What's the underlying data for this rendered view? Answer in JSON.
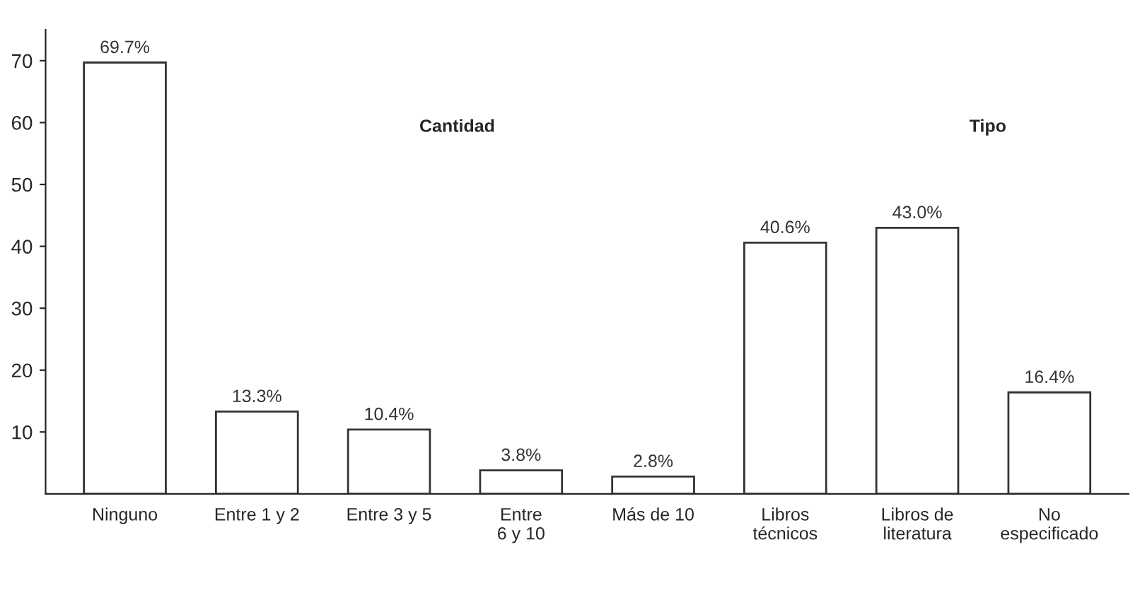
{
  "chart_data": {
    "type": "bar",
    "categories": [
      "Ninguno",
      "Entre 1 y 2",
      "Entre 3 y 5",
      "Entre\n6 y 10",
      "Más de 10",
      "Libros\ntécnicos",
      "Libros de\nliteratura",
      "No\nespecificado"
    ],
    "values": [
      69.7,
      13.3,
      10.4,
      3.8,
      2.8,
      40.6,
      43.0,
      16.4
    ],
    "value_labels": [
      "69.7%",
      "13.3%",
      "10.4%",
      "3.8%",
      "2.8%",
      "40.6%",
      "43.0%",
      "16.4%"
    ],
    "color": "#ffffff",
    "ylim": [
      0,
      75
    ],
    "yticks": [
      10,
      20,
      30,
      40,
      50,
      60,
      70
    ],
    "annotations": [
      "Cantidad",
      "Tipo"
    ],
    "grid": false
  }
}
